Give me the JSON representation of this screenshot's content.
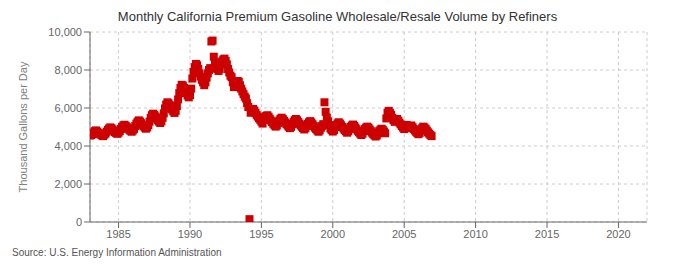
{
  "chart_data": {
    "type": "scatter",
    "title": "Monthly California Premium Gasoline Wholesale/Resale Volume by Refiners",
    "y_label": "Thousand Gallons per Day",
    "annotations": [
      "Source: U.S. Energy Information Administration"
    ],
    "color": "#cc0000",
    "marker": "square",
    "grid": true,
    "xlim": [
      1983,
      2022
    ],
    "ylim": [
      0,
      10000
    ],
    "xticks": [
      1985,
      1990,
      1995,
      2000,
      2005,
      2010,
      2015,
      2020
    ],
    "yticks": [
      0,
      {
        "value": 2000,
        "label": "2,000"
      },
      {
        "value": 4000,
        "label": "4,000"
      },
      {
        "value": 6000,
        "label": "6,000"
      },
      {
        "value": 8000,
        "label": "8,000"
      },
      {
        "value": 10000,
        "label": "10,000"
      }
    ],
    "x": [
      1983,
      1983.0833333333333,
      1983.1666666666667,
      1983.25,
      1983.3333333333333,
      1983.4166666666667,
      1983.5,
      1983.5833333333333,
      1983.6666666666667,
      1983.75,
      1983.8333333333333,
      1983.9166666666667,
      1984,
      1984.0833333333333,
      1984.1666666666667,
      1984.25,
      1984.3333333333333,
      1984.4166666666667,
      1984.5,
      1984.5833333333333,
      1984.6666666666667,
      1984.75,
      1984.8333333333333,
      1984.9166666666667,
      1985,
      1985.0833333333333,
      1985.1666666666667,
      1985.25,
      1985.3333333333333,
      1985.4166666666667,
      1985.5,
      1985.5833333333333,
      1985.6666666666667,
      1985.75,
      1985.8333333333333,
      1985.9166666666667,
      1986,
      1986.0833333333333,
      1986.1666666666667,
      1986.25,
      1986.3333333333333,
      1986.4166666666667,
      1986.5,
      1986.5833333333333,
      1986.6666666666667,
      1986.75,
      1986.8333333333333,
      1986.9166666666667,
      1987,
      1987.0833333333333,
      1987.1666666666667,
      1987.25,
      1987.3333333333333,
      1987.4166666666667,
      1987.5,
      1987.5833333333333,
      1987.6666666666667,
      1987.75,
      1987.8333333333333,
      1987.9166666666667,
      1988,
      1988.0833333333333,
      1988.1666666666667,
      1988.25,
      1988.3333333333333,
      1988.4166666666667,
      1988.5,
      1988.5833333333333,
      1988.6666666666667,
      1988.75,
      1988.8333333333333,
      1988.9166666666667,
      1989,
      1989.0833333333333,
      1989.1666666666667,
      1989.25,
      1989.3333333333333,
      1989.4166666666667,
      1989.5,
      1989.5833333333333,
      1989.6666666666667,
      1989.75,
      1989.8333333333333,
      1989.9166666666667,
      1990,
      1990.0833333333333,
      1990.1666666666667,
      1990.25,
      1990.3333333333333,
      1990.4166666666667,
      1990.5,
      1990.5833333333333,
      1990.6666666666667,
      1990.75,
      1990.8333333333333,
      1990.9166666666667,
      1991,
      1991.0833333333333,
      1991.1666666666667,
      1991.25,
      1991.3333333333333,
      1991.4166666666667,
      1991.5,
      1991.5833333333333,
      1991.6666666666667,
      1991.75,
      1991.8333333333333,
      1991.9166666666667,
      1992,
      1992.0833333333333,
      1992.1666666666667,
      1992.25,
      1992.3333333333333,
      1992.4166666666667,
      1992.5,
      1992.5833333333333,
      1992.6666666666667,
      1992.75,
      1992.8333333333333,
      1992.9166666666667,
      1993,
      1993.0833333333333,
      1993.1666666666667,
      1993.25,
      1993.3333333333333,
      1993.4166666666667,
      1993.5,
      1993.5833333333333,
      1993.6666666666667,
      1993.75,
      1993.8333333333333,
      1993.9166666666667,
      1994,
      1994.0833333333333,
      1994.1666666666667,
      1994.25,
      1994.3333333333333,
      1994.4166666666667,
      1994.5,
      1994.5833333333333,
      1994.6666666666667,
      1994.75,
      1994.8333333333333,
      1994.9166666666667,
      1995,
      1995.0833333333333,
      1995.1666666666667,
      1995.25,
      1995.3333333333333,
      1995.4166666666667,
      1995.5,
      1995.5833333333333,
      1995.6666666666667,
      1995.75,
      1995.8333333333333,
      1995.9166666666667,
      1996,
      1996.0833333333333,
      1996.1666666666667,
      1996.25,
      1996.3333333333333,
      1996.4166666666667,
      1996.5,
      1996.5833333333333,
      1996.6666666666667,
      1996.75,
      1996.8333333333333,
      1996.9166666666667,
      1997,
      1997.0833333333333,
      1997.1666666666667,
      1997.25,
      1997.3333333333333,
      1997.4166666666667,
      1997.5,
      1997.5833333333333,
      1997.6666666666667,
      1997.75,
      1997.8333333333333,
      1997.9166666666667,
      1998,
      1998.0833333333333,
      1998.1666666666667,
      1998.25,
      1998.3333333333333,
      1998.4166666666667,
      1998.5,
      1998.5833333333333,
      1998.6666666666667,
      1998.75,
      1998.8333333333333,
      1998.9166666666667,
      1999,
      1999.0833333333333,
      1999.1666666666667,
      1999.25,
      1999.3333333333333,
      1999.4166666666667,
      1999.5,
      1999.5833333333333,
      1999.6666666666667,
      1999.75,
      1999.8333333333333,
      1999.9166666666667,
      2000,
      2000.0833333333333,
      2000.1666666666667,
      2000.25,
      2000.3333333333333,
      2000.4166666666667,
      2000.5,
      2000.5833333333333,
      2000.6666666666667,
      2000.75,
      2000.8333333333333,
      2000.9166666666667,
      2001,
      2001.0833333333333,
      2001.1666666666667,
      2001.25,
      2001.3333333333333,
      2001.4166666666667,
      2001.5,
      2001.5833333333333,
      2001.6666666666667,
      2001.75,
      2001.8333333333333,
      2001.9166666666667,
      2002,
      2002.0833333333333,
      2002.1666666666667,
      2002.25,
      2002.3333333333333,
      2002.4166666666667,
      2002.5,
      2002.5833333333333,
      2002.6666666666667,
      2002.75,
      2002.8333333333333,
      2002.9166666666667,
      2003,
      2003.0833333333333,
      2003.1666666666667,
      2003.25,
      2003.3333333333333,
      2003.4166666666667,
      2003.5,
      2003.5833333333333,
      2003.6666666666667,
      2003.75,
      2003.8333333333333,
      2003.9166666666667,
      2004,
      2004.0833333333333,
      2004.1666666666667,
      2004.25,
      2004.3333333333333,
      2004.4166666666667,
      2004.5,
      2004.5833333333333,
      2004.6666666666667,
      2004.75,
      2004.8333333333333,
      2004.9166666666667,
      2005,
      2005.0833333333333,
      2005.1666666666667,
      2005.25,
      2005.3333333333333,
      2005.4166666666667,
      2005.5,
      2005.5833333333333,
      2005.6666666666667,
      2005.75,
      2005.8333333333333,
      2005.9166666666667,
      2006,
      2006.0833333333333,
      2006.1666666666667,
      2006.25,
      2006.3333333333333,
      2006.4166666666667,
      2006.5,
      2006.5833333333333,
      2006.6666666666667,
      2006.75,
      2006.8333333333333,
      2006.9166666666667
    ],
    "values": [
      4550,
      4580,
      4620,
      4700,
      4780,
      4820,
      4760,
      4690,
      4640,
      4600,
      4560,
      4520,
      4600,
      4650,
      4750,
      4850,
      4920,
      4980,
      4940,
      4870,
      4800,
      4730,
      4680,
      4640,
      4700,
      4780,
      4900,
      5000,
      5080,
      5120,
      5060,
      4990,
      4920,
      4860,
      4800,
      4750,
      4820,
      4900,
      5050,
      5180,
      5280,
      5350,
      5290,
      5200,
      5110,
      5040,
      4970,
      4910,
      4980,
      5100,
      5280,
      5480,
      5620,
      5700,
      5640,
      5550,
      5440,
      5360,
      5280,
      5210,
      5300,
      5480,
      5720,
      5980,
      6180,
      6300,
      6250,
      6150,
      6020,
      5920,
      5820,
      5740,
      5850,
      6100,
      6450,
      6780,
      7050,
      7220,
      7180,
      7060,
      6900,
      6780,
      6650,
      6560,
      6680,
      7020,
      7550,
      7900,
      8150,
      8320,
      8250,
      8050,
      7820,
      7650,
      7480,
      7350,
      7200,
      7350,
      7600,
      7820,
      8000,
      8100,
      9500,
      9550,
      8700,
      8400,
      8200,
      8050,
      7950,
      8050,
      8300,
      8450,
      8550,
      8600,
      8480,
      8300,
      8050,
      7870,
      7700,
      7620,
      7350,
      7100,
      7250,
      7350,
      7420,
      7380,
      7200,
      7020,
      6870,
      6730,
      6600,
      6500,
      6250,
      6050,
      150,
      5750,
      5850,
      5950,
      5870,
      5750,
      5640,
      5550,
      5460,
      5380,
      5280,
      5180,
      5380,
      5500,
      5580,
      5620,
      5540,
      5440,
      5340,
      5260,
      5170,
      5090,
      5020,
      5080,
      5220,
      5340,
      5430,
      5490,
      5420,
      5330,
      5240,
      5160,
      5080,
      5010,
      4940,
      5010,
      5150,
      5260,
      5360,
      5420,
      5350,
      5260,
      5170,
      5090,
      5010,
      4940,
      4870,
      4940,
      5060,
      5160,
      5250,
      5310,
      5240,
      5150,
      5050,
      4970,
      4890,
      4820,
      4750,
      4820,
      4960,
      5060,
      5150,
      6300,
      5800,
      5500,
      5300,
      5100,
      4920,
      4840,
      4760,
      4840,
      5000,
      5100,
      5190,
      5250,
      5180,
      5090,
      5000,
      4920,
      4840,
      4770,
      4700,
      4770,
      4900,
      5000,
      5080,
      5130,
      5060,
      4970,
      4880,
      4800,
      4720,
      4650,
      4580,
      4650,
      4790,
      4890,
      4970,
      5020,
      4960,
      4870,
      4780,
      4700,
      4620,
      4560,
      4500,
      4560,
      4680,
      4780,
      4860,
      4910,
      4850,
      4760,
      4670,
      5450,
      5750,
      5850,
      5750,
      5640,
      5480,
      5360,
      5270,
      5330,
      5420,
      5330,
      5230,
      5140,
      5050,
      4970,
      4890,
      4970,
      5110,
      5010,
      4940,
      5000,
      5080,
      4990,
      4900,
      4820,
      4750,
      4680,
      4620,
      4690,
      4820,
      4930,
      5020,
      4970,
      4900,
      4810,
      4720,
      4650,
      4580,
      4520
    ]
  }
}
